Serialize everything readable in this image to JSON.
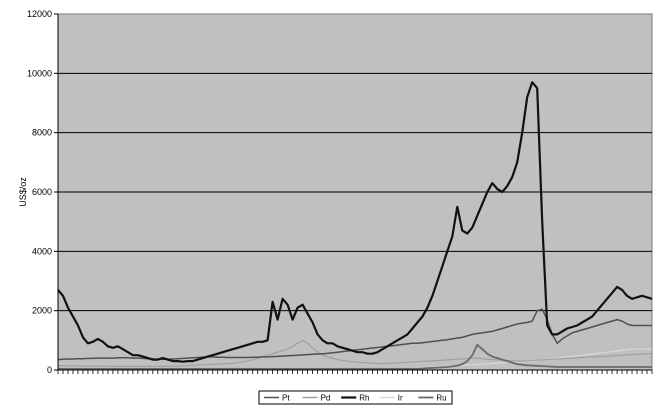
{
  "chart_data": {
    "type": "line",
    "title": "",
    "xlabel": "",
    "ylabel": "US$/oz",
    "ylim": [
      0,
      12000
    ],
    "yticks": [
      0,
      2000,
      4000,
      6000,
      8000,
      10000,
      12000
    ],
    "grid": true,
    "legend_position": "bottom",
    "plot_background": "#c0c0c0",
    "x": [
      0,
      5,
      10,
      15,
      20,
      25,
      30,
      35,
      40,
      45,
      50,
      55,
      60,
      65,
      70,
      75,
      80,
      85,
      90,
      95,
      100,
      105,
      110,
      115,
      120,
      125,
      130,
      135,
      140,
      145,
      150,
      155,
      160,
      165,
      170,
      175,
      180,
      185,
      190,
      195,
      200,
      205,
      210,
      215,
      220,
      225,
      230,
      235,
      240,
      245,
      250,
      255,
      260,
      265,
      270,
      275,
      280,
      285,
      290,
      295,
      300,
      305,
      310,
      315,
      320,
      325,
      330,
      335,
      340,
      345,
      350,
      355,
      360,
      365,
      370,
      375,
      380,
      385,
      390,
      395,
      400,
      405,
      410,
      415,
      420,
      425,
      430,
      435,
      440,
      445,
      450,
      455,
      460,
      465,
      470,
      475,
      480,
      485,
      490,
      495,
      500,
      505,
      510,
      515,
      520,
      525,
      530,
      535,
      540,
      545,
      550,
      555,
      560,
      565,
      570,
      575,
      580,
      585,
      590,
      595
    ],
    "series": [
      {
        "name": "Pt",
        "color": "#505050",
        "width": 1.5,
        "values": [
          350,
          360,
          370,
          370,
          380,
          380,
          390,
          390,
          400,
          400,
          400,
          400,
          410,
          410,
          410,
          400,
          400,
          390,
          380,
          370,
          360,
          360,
          360,
          370,
          380,
          390,
          400,
          410,
          420,
          430,
          440,
          440,
          430,
          430,
          420,
          420,
          420,
          420,
          420,
          430,
          430,
          440,
          440,
          450,
          460,
          470,
          480,
          490,
          500,
          510,
          520,
          530,
          540,
          550,
          560,
          580,
          600,
          620,
          640,
          660,
          680,
          700,
          720,
          740,
          760,
          780,
          800,
          820,
          840,
          860,
          880,
          900,
          900,
          920,
          940,
          960,
          980,
          1000,
          1020,
          1050,
          1080,
          1100,
          1150,
          1200,
          1230,
          1250,
          1280,
          1300,
          1350,
          1400,
          1450,
          1500,
          1550,
          1580,
          1600,
          1650,
          2000,
          2050,
          1700,
          1200,
          900,
          1050,
          1150,
          1250,
          1300,
          1350,
          1400,
          1450,
          1500,
          1550,
          1600,
          1650,
          1700,
          1650,
          1550,
          1500,
          1500,
          1500,
          1500,
          1500
        ]
      },
      {
        "name": "Pd",
        "color": "#a0a0a0",
        "width": 1.2,
        "values": [
          150,
          150,
          140,
          140,
          140,
          130,
          130,
          130,
          130,
          130,
          130,
          120,
          120,
          120,
          120,
          120,
          120,
          120,
          120,
          120,
          120,
          120,
          120,
          130,
          130,
          140,
          150,
          160,
          170,
          180,
          180,
          190,
          200,
          210,
          220,
          230,
          250,
          280,
          300,
          350,
          400,
          450,
          500,
          550,
          600,
          650,
          700,
          800,
          900,
          1000,
          900,
          750,
          600,
          500,
          450,
          400,
          350,
          320,
          300,
          280,
          260,
          250,
          240,
          230,
          220,
          220,
          220,
          230,
          240,
          250,
          260,
          270,
          280,
          290,
          300,
          310,
          320,
          330,
          340,
          350,
          360,
          370,
          380,
          390,
          400,
          380,
          360,
          350,
          340,
          330,
          320,
          310,
          300,
          300,
          310,
          320,
          330,
          340,
          350,
          360,
          370,
          380,
          390,
          400,
          410,
          420,
          430,
          440,
          450,
          460,
          470,
          480,
          490,
          500,
          510,
          520,
          530,
          540,
          550,
          560
        ]
      },
      {
        "name": "Rh",
        "color": "#111111",
        "width": 2.2,
        "values": [
          2700,
          2500,
          2100,
          1800,
          1500,
          1100,
          900,
          950,
          1050,
          950,
          800,
          750,
          800,
          700,
          600,
          500,
          500,
          450,
          400,
          350,
          350,
          400,
          350,
          300,
          300,
          280,
          300,
          300,
          350,
          400,
          450,
          500,
          550,
          600,
          650,
          700,
          750,
          800,
          850,
          900,
          950,
          950,
          1000,
          2300,
          1700,
          2400,
          2200,
          1700,
          2100,
          2200,
          1900,
          1600,
          1200,
          1000,
          900,
          900,
          800,
          750,
          700,
          650,
          600,
          600,
          550,
          550,
          600,
          700,
          800,
          900,
          1000,
          1100,
          1200,
          1400,
          1600,
          1800,
          2100,
          2500,
          3000,
          3500,
          4000,
          4500,
          5500,
          4700,
          4600,
          4800,
          5200,
          5600,
          6000,
          6300,
          6100,
          6000,
          6200,
          6500,
          7000,
          8000,
          9200,
          9700,
          9500,
          5000,
          1500,
          1200,
          1200,
          1300,
          1400,
          1450,
          1500,
          1600,
          1700,
          1800,
          2000,
          2200,
          2400,
          2600,
          2800,
          2700,
          2500,
          2400,
          2450,
          2500,
          2450,
          2400
        ]
      },
      {
        "name": "Ir",
        "color": "#d8d8d8",
        "width": 1.2,
        "values": [
          60,
          60,
          60,
          60,
          60,
          60,
          60,
          60,
          60,
          60,
          60,
          60,
          60,
          60,
          60,
          60,
          60,
          60,
          60,
          60,
          60,
          60,
          60,
          60,
          60,
          60,
          60,
          60,
          60,
          60,
          60,
          60,
          60,
          60,
          60,
          60,
          60,
          60,
          60,
          60,
          60,
          60,
          60,
          60,
          60,
          60,
          60,
          60,
          60,
          60,
          60,
          60,
          60,
          60,
          60,
          60,
          60,
          60,
          60,
          60,
          60,
          60,
          60,
          60,
          60,
          60,
          60,
          60,
          60,
          60,
          60,
          60,
          70,
          80,
          90,
          100,
          110,
          120,
          130,
          140,
          150,
          160,
          170,
          180,
          190,
          200,
          210,
          220,
          230,
          240,
          250,
          260,
          270,
          280,
          290,
          300,
          320,
          340,
          360,
          380,
          400,
          420,
          440,
          460,
          480,
          500,
          520,
          540,
          560,
          580,
          600,
          620,
          640,
          660,
          680,
          700,
          700,
          700,
          700,
          700
        ]
      },
      {
        "name": "Ru",
        "color": "#6a6a6a",
        "width": 1.8,
        "values": [
          40,
          40,
          40,
          40,
          40,
          40,
          40,
          40,
          40,
          40,
          40,
          40,
          40,
          40,
          40,
          40,
          40,
          40,
          40,
          40,
          40,
          40,
          40,
          40,
          40,
          40,
          40,
          40,
          40,
          40,
          40,
          40,
          40,
          40,
          40,
          40,
          40,
          40,
          40,
          40,
          40,
          40,
          40,
          40,
          40,
          40,
          40,
          40,
          40,
          40,
          40,
          40,
          40,
          40,
          40,
          40,
          40,
          40,
          40,
          40,
          40,
          40,
          40,
          40,
          40,
          40,
          40,
          40,
          40,
          40,
          40,
          40,
          40,
          50,
          60,
          70,
          80,
          90,
          100,
          120,
          150,
          200,
          300,
          500,
          850,
          700,
          550,
          450,
          400,
          350,
          300,
          250,
          200,
          180,
          160,
          150,
          140,
          130,
          120,
          110,
          100,
          100,
          100,
          100,
          100,
          100,
          100,
          100,
          100,
          100,
          100,
          100,
          100,
          100,
          100,
          100,
          100,
          100,
          100,
          100
        ]
      }
    ]
  }
}
